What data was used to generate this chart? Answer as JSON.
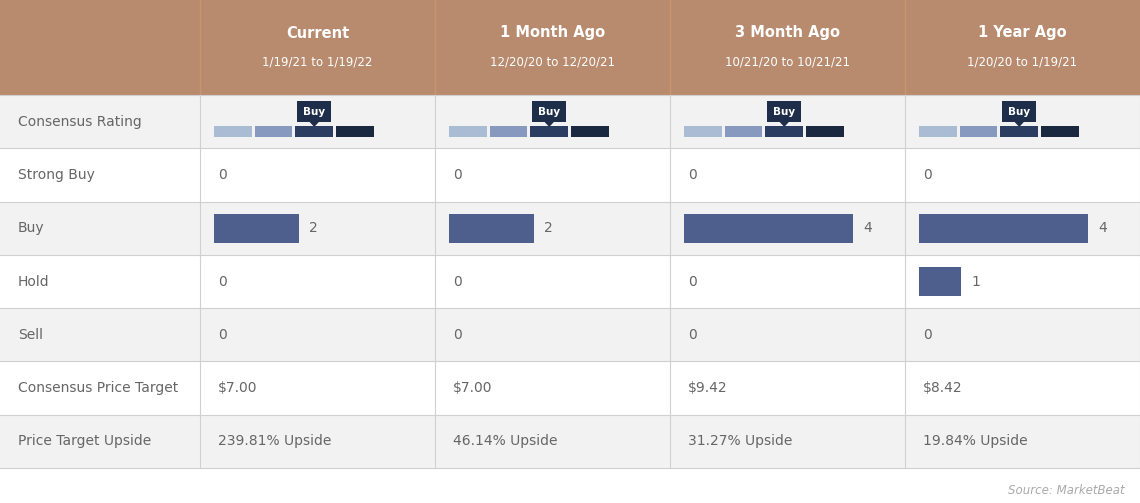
{
  "header_bg": "#b88b6e",
  "header_text_color": "#ffffff",
  "columns": [
    {
      "label": "Current",
      "sublabel": "1/19/21 to 1/19/22"
    },
    {
      "label": "1 Month Ago",
      "sublabel": "12/20/20 to 12/20/21"
    },
    {
      "label": "3 Month Ago",
      "sublabel": "10/21/20 to 10/21/21"
    },
    {
      "label": "1 Year Ago",
      "sublabel": "1/20/20 to 1/19/21"
    }
  ],
  "rows": [
    {
      "label": "Consensus Rating",
      "type": "rating_bar",
      "buy_vals": [
        2,
        2,
        4,
        4
      ],
      "hold_vals": [
        0,
        0,
        0,
        1
      ]
    },
    {
      "label": "Strong Buy",
      "type": "number",
      "values": [
        "0",
        "0",
        "0",
        "0"
      ]
    },
    {
      "label": "Buy",
      "type": "bar_number",
      "values": [
        2,
        2,
        4,
        4
      ],
      "max_vals": [
        2,
        2,
        4,
        5
      ]
    },
    {
      "label": "Hold",
      "type": "bar_number",
      "values": [
        0,
        0,
        0,
        1
      ],
      "max_vals": [
        2,
        2,
        4,
        5
      ]
    },
    {
      "label": "Sell",
      "type": "number",
      "values": [
        "0",
        "0",
        "0",
        "0"
      ]
    },
    {
      "label": "Consensus Price Target",
      "type": "number",
      "values": [
        "$7.00",
        "$7.00",
        "$9.42",
        "$8.42"
      ]
    },
    {
      "label": "Price Target Upside",
      "type": "number",
      "values": [
        "239.81% Upside",
        "46.14% Upside",
        "31.27% Upside",
        "19.84% Upside"
      ]
    }
  ],
  "bar_color": "#4e5f8e",
  "rating_colors": [
    "#aabbd4",
    "#8899bf",
    "#2c3d62",
    "#1a2840"
  ],
  "source_text": "Source: MarketBeat",
  "row_bg": [
    "#f2f2f2",
    "#ffffff",
    "#f2f2f2",
    "#ffffff",
    "#f2f2f2",
    "#ffffff",
    "#f2f2f2"
  ],
  "text_color": "#666666",
  "grid_color": "#d0d0d0",
  "header_fontsize": 10.5,
  "sub_fontsize": 8.5,
  "cell_fontsize": 10,
  "label_fontsize": 10
}
